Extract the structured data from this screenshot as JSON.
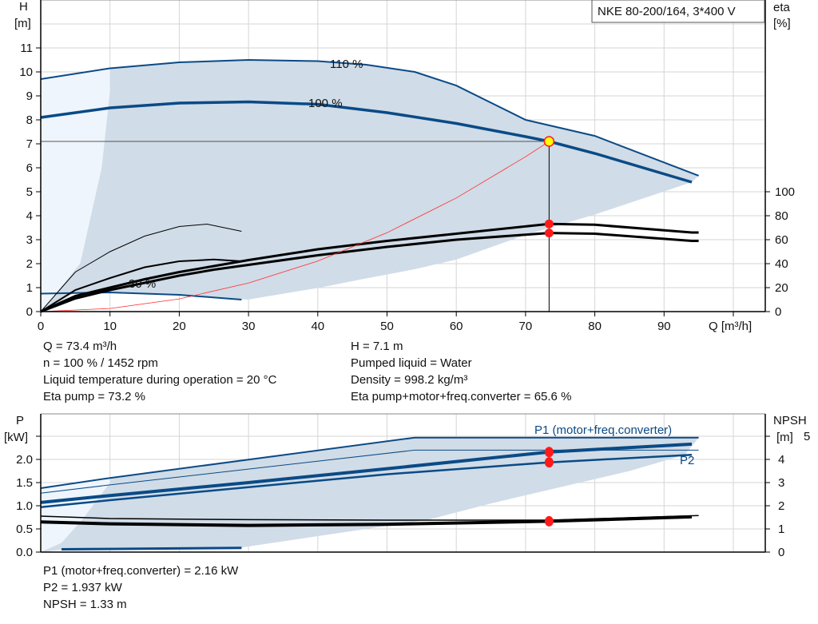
{
  "chart_data": [
    {
      "type": "line",
      "title": "NKE 80-200/164, 3*400 V",
      "xlabel": "Q [m³/h]",
      "ylabel": [
        "H",
        "[m]"
      ],
      "y2label": [
        "eta",
        "[%]"
      ],
      "xlim": [
        0,
        105
      ],
      "ylim": [
        0,
        12
      ],
      "y2lim": [
        0,
        100
      ],
      "grid": true,
      "xticks": [
        0,
        10,
        20,
        30,
        40,
        50,
        60,
        70,
        80,
        90
      ],
      "yticks": [
        0,
        1,
        2,
        3,
        4,
        5,
        6,
        7,
        8,
        9,
        10,
        11
      ],
      "y2ticks": [
        0,
        20,
        40,
        60,
        80,
        100
      ],
      "colors": {
        "head": "#0a4a86",
        "region": "#d0dce7",
        "region_light": "#eef5fc",
        "system": "#ff3030",
        "eta": "#000000",
        "point": "#ff1a1a",
        "duty": "#ffff00"
      },
      "region": [
        [
          10,
          10.15
        ],
        [
          20,
          10.4
        ],
        [
          30,
          10.5
        ],
        [
          40,
          10.45
        ],
        [
          47,
          10.3
        ],
        [
          54,
          10.0
        ],
        [
          60,
          9.43
        ],
        [
          70,
          8.0
        ],
        [
          80,
          7.33
        ],
        [
          95,
          5.67
        ],
        [
          94,
          5.4
        ],
        [
          80,
          4.05
        ],
        [
          70,
          3.2
        ],
        [
          60,
          2.17
        ],
        [
          54,
          1.77
        ],
        [
          46,
          1.33
        ],
        [
          40.3,
          1.0
        ],
        [
          29.9,
          0.5
        ],
        [
          25,
          0.6
        ],
        [
          20,
          0.7
        ],
        [
          15,
          0.75
        ],
        [
          10,
          0.8
        ],
        [
          5,
          0.8
        ],
        [
          3.3,
          0.5
        ],
        [
          0,
          0
        ],
        [
          5.7,
          2
        ],
        [
          8.8,
          6
        ],
        [
          10,
          9.2
        ]
      ],
      "region_light": [
        [
          0,
          9.7
        ],
        [
          10,
          10.15
        ],
        [
          10,
          9.2
        ],
        [
          8.8,
          6
        ],
        [
          5.7,
          2
        ],
        [
          3.3,
          0.5
        ],
        [
          0,
          0
        ]
      ],
      "series": [
        {
          "name": "110 %",
          "axis": "H",
          "x": [
            0,
            10,
            20,
            30,
            40,
            47,
            54,
            60,
            70,
            80,
            95
          ],
          "y": [
            9.7,
            10.15,
            10.4,
            10.5,
            10.45,
            10.3,
            10.0,
            9.43,
            8.0,
            7.33,
            5.67
          ]
        },
        {
          "name": "100 %",
          "axis": "H",
          "x": [
            0,
            10,
            20,
            30,
            40,
            50,
            60,
            70,
            73.4,
            80,
            94
          ],
          "y": [
            8.1,
            8.5,
            8.7,
            8.75,
            8.65,
            8.3,
            7.85,
            7.3,
            7.1,
            6.6,
            5.4
          ]
        },
        {
          "name": "30 %",
          "axis": "H",
          "x": [
            0,
            10,
            20,
            29
          ],
          "y": [
            0.75,
            0.8,
            0.7,
            0.5
          ]
        },
        {
          "axis": "eta",
          "x": [
            0,
            5,
            10,
            15,
            20,
            25,
            30,
            40,
            50,
            60,
            73.4,
            80,
            94,
            95
          ],
          "y": [
            0,
            13,
            20,
            27,
            33,
            38,
            43,
            52,
            59,
            65,
            73.2,
            72.5,
            66,
            66
          ]
        },
        {
          "axis": "eta",
          "x": [
            0,
            5,
            10,
            15,
            20,
            25,
            30,
            40,
            50,
            60,
            73.4,
            80,
            94,
            95
          ],
          "y": [
            0,
            11,
            18,
            24,
            30,
            35,
            39,
            47,
            54,
            60,
            65.6,
            65,
            59,
            59
          ]
        },
        {
          "axis": "eta",
          "x": [
            0,
            5,
            10,
            15,
            20,
            25,
            29
          ],
          "y": [
            0,
            18,
            28,
            37,
            42,
            43.5,
            42
          ]
        },
        {
          "axis": "eta",
          "x": [
            0,
            5,
            10,
            15,
            20,
            24,
            29
          ],
          "y": [
            0,
            33,
            50,
            63,
            71,
            73,
            67
          ]
        }
      ],
      "system_curve": {
        "x": [
          0,
          10,
          20,
          30,
          40,
          50,
          60,
          70,
          73.4
        ],
        "y": [
          0,
          0.13,
          0.53,
          1.19,
          2.11,
          3.29,
          4.74,
          6.46,
          7.1
        ]
      },
      "duty_point": {
        "q": 73.4,
        "h": 7.1,
        "eta_pump": 73.2,
        "eta_total": 65.6
      }
    },
    {
      "type": "line",
      "ylabel": [
        "P",
        "[kW]"
      ],
      "y2label": [
        "NPSH",
        "[m]"
      ],
      "xlim": [
        0,
        105
      ],
      "ylim": [
        0,
        2.8
      ],
      "y2lim": [
        0,
        5.6
      ],
      "grid": true,
      "yticks": [
        "0.0",
        "0.5",
        "1.0",
        "1.5",
        "2.0"
      ],
      "y2ticks": [
        0,
        1,
        2,
        3,
        4,
        5
      ],
      "region": [
        [
          10,
          1.6
        ],
        [
          54,
          2.47
        ],
        [
          95,
          2.47
        ],
        [
          93,
          2.1
        ],
        [
          85,
          1.75
        ],
        [
          75,
          1.4
        ],
        [
          65,
          1.05
        ],
        [
          56,
          0.7
        ],
        [
          47,
          0.5
        ],
        [
          38,
          0.3
        ],
        [
          29,
          0.1
        ],
        [
          20,
          0.1
        ],
        [
          10,
          0.1
        ],
        [
          3,
          0.05
        ],
        [
          0,
          0
        ],
        [
          3,
          0.2
        ],
        [
          6,
          0.7
        ],
        [
          8,
          1.1
        ],
        [
          10,
          1.5
        ]
      ],
      "region_light": [
        [
          0,
          1.38
        ],
        [
          10,
          1.6
        ],
        [
          10,
          1.5
        ],
        [
          8,
          1.1
        ],
        [
          6,
          0.7
        ],
        [
          3,
          0.2
        ],
        [
          0,
          0
        ]
      ],
      "series": [
        {
          "axis": "P",
          "x": [
            0,
            10,
            54,
            95
          ],
          "y": [
            1.38,
            1.6,
            2.47,
            2.47
          ],
          "width": 2
        },
        {
          "axis": "P",
          "x": [
            0,
            10,
            54,
            95
          ],
          "y": [
            1.27,
            1.45,
            2.2,
            2.2
          ],
          "width": 1
        },
        {
          "name": "P1 (motor+freq.converter)",
          "axis": "P",
          "x": [
            0,
            10,
            30,
            50,
            73.4,
            94
          ],
          "y": [
            1.07,
            1.22,
            1.5,
            1.8,
            2.16,
            2.33
          ],
          "width": 4
        },
        {
          "name": "P2",
          "axis": "P",
          "x": [
            0,
            10,
            30,
            50,
            73.4,
            94
          ],
          "y": [
            0.97,
            1.12,
            1.4,
            1.68,
            1.937,
            2.1
          ],
          "width": 2.5
        },
        {
          "axis": "P",
          "x": [
            3,
            29
          ],
          "y": [
            0.06,
            0.09
          ],
          "width": 3
        },
        {
          "axis": "NPSH",
          "x": [
            0,
            10,
            30,
            50,
            73.4,
            95
          ],
          "y": [
            1.55,
            1.45,
            1.4,
            1.38,
            1.38,
            1.58
          ],
          "width": 1.5,
          "color": "#000"
        },
        {
          "axis": "NPSH",
          "x": [
            0,
            10,
            30,
            50,
            73.4,
            94
          ],
          "y": [
            1.3,
            1.22,
            1.15,
            1.2,
            1.33,
            1.52
          ],
          "width": 4,
          "color": "#000"
        }
      ],
      "duty_point": {
        "q": 73.4,
        "p1": 2.16,
        "p2": 1.937,
        "npsh": 1.33
      }
    }
  ],
  "info_top_left": [
    "Q = 73.4 m³/h",
    "n = 100 % / 1452 rpm",
    "Liquid temperature during operation = 20 °C",
    "Eta pump = 73.2 %"
  ],
  "info_top_right": [
    "H = 7.1 m",
    "Pumped liquid = Water",
    "Density = 998.2 kg/m³",
    "Eta pump+motor+freq.converter = 65.6 %"
  ],
  "info_bottom": [
    "P1 (motor+freq.converter) = 2.16 kW",
    "P2 = 1.937 kW",
    "NPSH = 1.33 m"
  ]
}
